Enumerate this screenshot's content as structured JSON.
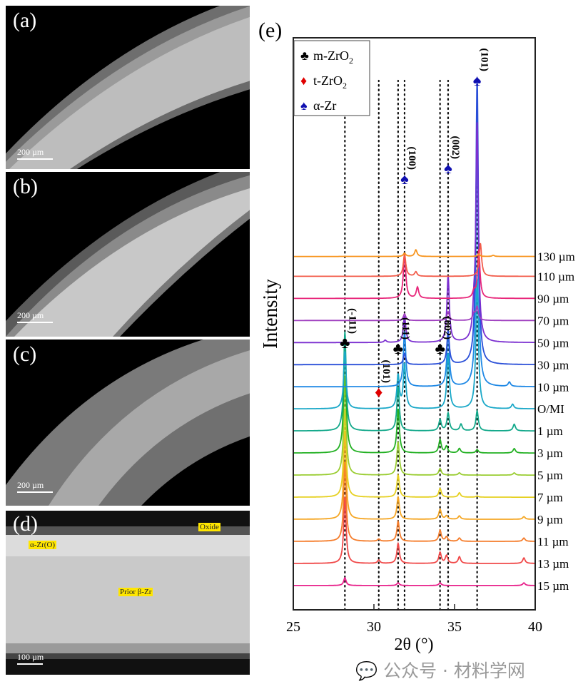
{
  "panels": [
    {
      "label": "(a)",
      "scale_bar": "200 µm"
    },
    {
      "label": "(b)",
      "scale_bar": "200 µm"
    },
    {
      "label": "(c)",
      "scale_bar": "200 µm"
    },
    {
      "label": "(d)",
      "scale_bar": "100 µm",
      "tags": [
        "Oxide",
        "α-Zr(O)",
        "Prior β-Zr"
      ]
    }
  ],
  "watermark": "公众号 · 材料学网",
  "chart_data": {
    "type": "line",
    "panel_label": "(e)",
    "xlabel": "2θ (°)",
    "ylabel": "Intensity",
    "xlim": [
      25,
      40
    ],
    "ylim": [
      0,
      25.9
    ],
    "xticks": [
      25,
      30,
      35,
      40
    ],
    "grid": false,
    "legend_position": "top-left",
    "legend": [
      {
        "symbol": "♣",
        "label": "m-ZrO",
        "sub": "2",
        "color": "#000000"
      },
      {
        "symbol": "♦",
        "label": "t-ZrO",
        "sub": "2",
        "color": "#e00000"
      },
      {
        "symbol": "♠",
        "label": "α-Zr",
        "sub": "",
        "color": "#1010b0"
      }
    ],
    "reference_lines": [
      28.2,
      30.3,
      31.5,
      31.9,
      34.1,
      34.6,
      36.4
    ],
    "annotations": [
      {
        "phase": "m-ZrO2",
        "symbol": "♣",
        "hkl": "(-111)",
        "x": 28.2,
        "color": "#000000"
      },
      {
        "phase": "t-ZrO2",
        "symbol": "♦",
        "hkl": "(101)",
        "x": 30.3,
        "color": "#e00000"
      },
      {
        "phase": "m-ZrO2",
        "symbol": "♣",
        "hkl": "(111)",
        "x": 31.5,
        "color": "#000000"
      },
      {
        "phase": "m-ZrO2",
        "symbol": "♣",
        "hkl": "(002)",
        "x": 34.1,
        "color": "#000000"
      },
      {
        "phase": "α-Zr",
        "symbol": "♠",
        "hkl": "(100)",
        "x": 31.9,
        "color": "#1010b0"
      },
      {
        "phase": "α-Zr",
        "symbol": "♠",
        "hkl": "(002)",
        "x": 34.6,
        "color": "#1010b0"
      },
      {
        "phase": "α-Zr",
        "symbol": "♠",
        "hkl": "(101)",
        "x": 36.4,
        "color": "#1010b0"
      }
    ],
    "series": [
      {
        "name": "15 µm",
        "offset": 1.1,
        "color": "#e8208a",
        "peaks": [
          [
            28.2,
            0.35
          ],
          [
            31.5,
            0.12
          ],
          [
            34.1,
            0.12
          ],
          [
            39.3,
            0.12
          ]
        ]
      },
      {
        "name": "13 µm",
        "offset": 2.1,
        "color": "#f04848",
        "peaks": [
          [
            28.2,
            3.0
          ],
          [
            30.3,
            0.15
          ],
          [
            31.5,
            0.9
          ],
          [
            34.1,
            0.5
          ],
          [
            34.5,
            0.35
          ],
          [
            35.3,
            0.3
          ],
          [
            39.3,
            0.25
          ]
        ]
      },
      {
        "name": "11 µm",
        "offset": 3.1,
        "color": "#f57c2a",
        "peaks": [
          [
            28.2,
            3.6
          ],
          [
            30.3,
            0.1
          ],
          [
            31.5,
            0.9
          ],
          [
            34.1,
            0.5
          ],
          [
            34.5,
            0.2
          ],
          [
            35.3,
            0.15
          ],
          [
            39.3,
            0.15
          ]
        ]
      },
      {
        "name": "9 µm",
        "offset": 4.1,
        "color": "#f5a623",
        "peaks": [
          [
            28.2,
            4.0
          ],
          [
            31.5,
            1.0
          ],
          [
            34.1,
            0.45
          ],
          [
            34.5,
            0.15
          ],
          [
            35.3,
            0.15
          ],
          [
            39.3,
            0.12
          ]
        ]
      },
      {
        "name": "7 µm",
        "offset": 5.1,
        "color": "#e6d020",
        "peaks": [
          [
            28.2,
            4.0
          ],
          [
            31.5,
            1.0
          ],
          [
            34.1,
            0.4
          ],
          [
            35.3,
            0.2
          ],
          [
            36.4,
            0.05
          ]
        ]
      },
      {
        "name": "5 µm",
        "offset": 6.1,
        "color": "#9acd32",
        "peaks": [
          [
            28.2,
            4.5
          ],
          [
            31.5,
            1.5
          ],
          [
            34.1,
            0.3
          ],
          [
            35.3,
            0.1
          ],
          [
            38.7,
            0.1
          ]
        ]
      },
      {
        "name": "3 µm",
        "offset": 7.1,
        "color": "#22b022",
        "peaks": [
          [
            28.2,
            5.0
          ],
          [
            31.5,
            2.0
          ],
          [
            34.1,
            0.6
          ],
          [
            34.5,
            0.3
          ],
          [
            35.3,
            0.2
          ],
          [
            36.4,
            0.15
          ],
          [
            38.7,
            0.2
          ]
        ]
      },
      {
        "name": "1 µm",
        "offset": 8.1,
        "color": "#12a88a",
        "peaks": [
          [
            28.2,
            4.5
          ],
          [
            31.5,
            2.0
          ],
          [
            34.1,
            0.5
          ],
          [
            34.6,
            0.8
          ],
          [
            35.4,
            0.3
          ],
          [
            36.4,
            0.9
          ],
          [
            38.7,
            0.3
          ]
        ]
      },
      {
        "name": "O/MI",
        "offset": 9.1,
        "color": "#1aa8c8",
        "peaks": [
          [
            28.2,
            2.6
          ],
          [
            31.5,
            1.5
          ],
          [
            31.9,
            2.0
          ],
          [
            34.6,
            2.5
          ],
          [
            36.4,
            6.0
          ],
          [
            38.6,
            0.2
          ]
        ]
      },
      {
        "name": "10 µm",
        "offset": 10.1,
        "color": "#1e88e5",
        "peaks": [
          [
            31.9,
            2.5
          ],
          [
            34.6,
            2.5
          ],
          [
            36.4,
            11.0
          ],
          [
            38.4,
            0.2
          ]
        ]
      },
      {
        "name": "30 µm",
        "offset": 11.1,
        "color": "#2a4fd8",
        "peaks": [
          [
            31.9,
            0.5
          ],
          [
            34.6,
            1.5
          ],
          [
            36.4,
            13.0
          ]
        ]
      },
      {
        "name": "50 µm",
        "offset": 12.1,
        "color": "#7b2fd0",
        "peaks": [
          [
            30.7,
            0.1
          ],
          [
            31.9,
            1.2
          ],
          [
            34.6,
            3.0
          ],
          [
            36.2,
            1.0
          ],
          [
            36.4,
            9.8
          ]
        ]
      },
      {
        "name": "70 µm",
        "offset": 13.1,
        "color": "#a040c0",
        "peaks": [
          [
            31.9,
            0.3
          ],
          [
            34.6,
            0.4
          ],
          [
            36.2,
            0.3
          ],
          [
            36.4,
            0.6
          ]
        ]
      },
      {
        "name": "90 µm",
        "offset": 14.1,
        "color": "#e8267a",
        "peaks": [
          [
            31.9,
            2.0
          ],
          [
            32.7,
            0.5
          ],
          [
            36.2,
            0.3
          ],
          [
            36.5,
            2.2
          ]
        ]
      },
      {
        "name": "110 µm",
        "offset": 15.1,
        "color": "#f25c4a",
        "peaks": [
          [
            31.9,
            1.0
          ],
          [
            32.6,
            0.2
          ],
          [
            36.6,
            1.5
          ]
        ]
      },
      {
        "name": "130 µm",
        "offset": 16.0,
        "color": "#f7941d",
        "peaks": [
          [
            31.9,
            0.15
          ],
          [
            32.6,
            0.3
          ],
          [
            36.5,
            0.1
          ],
          [
            37.4,
            0.05
          ]
        ]
      }
    ]
  }
}
